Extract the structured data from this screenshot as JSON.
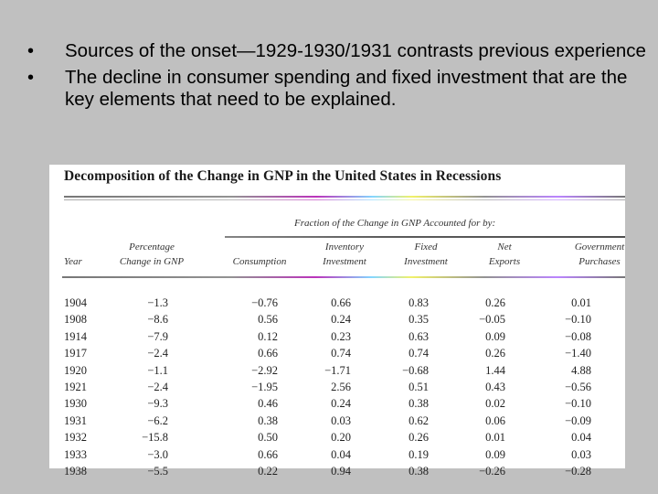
{
  "bullets": [
    "Sources of the onset—1929-1930/1931 contrasts previous experience",
    "The decline in consumer spending and fixed investment that are the key elements that need to be explained."
  ],
  "table": {
    "title": "Decomposition of the Change in GNP in the United States in Recessions",
    "super_header": "Fraction of the Change in GNP Accounted for by:",
    "columns": [
      {
        "line1": "",
        "line2": "Year"
      },
      {
        "line1": "Percentage",
        "line2": "Change in GNP"
      },
      {
        "line1": "",
        "line2": "Consumption"
      },
      {
        "line1": "Inventory",
        "line2": "Investment"
      },
      {
        "line1": "Fixed",
        "line2": "Investment"
      },
      {
        "line1": "Net",
        "line2": "Exports"
      },
      {
        "line1": "Government",
        "line2": "Purchases"
      }
    ],
    "rows": [
      [
        "1904",
        "−1.3",
        "−0.76",
        "0.66",
        "0.83",
        "0.26",
        "0.01"
      ],
      [
        "1908",
        "−8.6",
        "0.56",
        "0.24",
        "0.35",
        "−0.05",
        "−0.10"
      ],
      [
        "1914",
        "−7.9",
        "0.12",
        "0.23",
        "0.63",
        "0.09",
        "−0.08"
      ],
      [
        "1917",
        "−2.4",
        "0.66",
        "0.74",
        "0.74",
        "0.26",
        "−1.40"
      ],
      [
        "1920",
        "−1.1",
        "−2.92",
        "−1.71",
        "−0.68",
        "1.44",
        "4.88"
      ],
      [
        "1921",
        "−2.4",
        "−1.95",
        "2.56",
        "0.51",
        "0.43",
        "−0.56"
      ],
      [
        "1930",
        "−9.3",
        "0.46",
        "0.24",
        "0.38",
        "0.02",
        "−0.10"
      ],
      [
        "1931",
        "−6.2",
        "0.38",
        "0.03",
        "0.62",
        "0.06",
        "−0.09"
      ],
      [
        "1932",
        "−15.8",
        "0.50",
        "0.20",
        "0.26",
        "0.01",
        "0.04"
      ],
      [
        "1933",
        "−3.0",
        "0.66",
        "0.04",
        "0.19",
        "0.09",
        "0.03"
      ],
      [
        "1938",
        "−5.5",
        "0.22",
        "0.94",
        "0.38",
        "−0.26",
        "−0.28"
      ]
    ]
  }
}
